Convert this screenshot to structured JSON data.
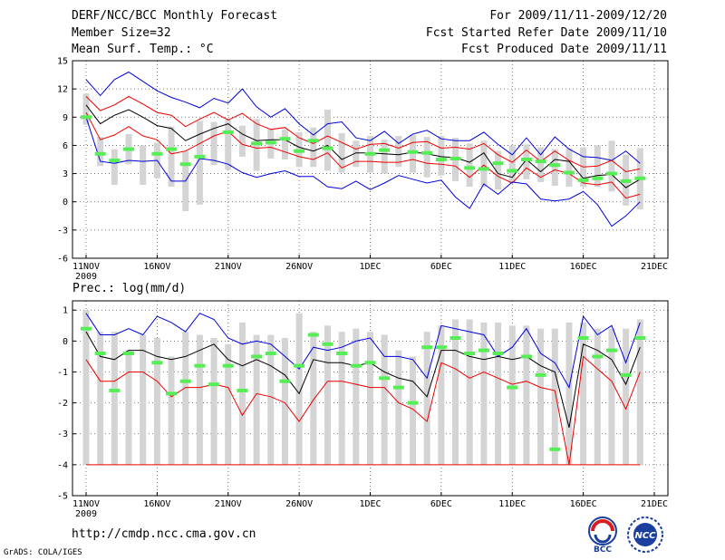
{
  "header": {
    "title": "DERF/NCC/BCC Monthly Forecast",
    "member_size": "Member Size=32",
    "variable": "Mean Surf. Temp.: °C",
    "period": "For 2009/11/11-2009/12/20",
    "start_date": "Fcst Started Refer Date 2009/11/10",
    "produced_date": "Fcst Produced Date 2009/11/11"
  },
  "footer": {
    "url": "http://cmdp.ncc.cma.gov.cn",
    "grads": "GrADS: COLA/IGES",
    "logo_bcc": "BCC",
    "logo_ncc": "NCC"
  },
  "colors": {
    "envelope_max_min": "#0000dd",
    "spread_band": "#ee0000",
    "ensemble_mean": "#000000",
    "bar": "#d4d4d4",
    "marker": "#55ee55",
    "grid": "#555555"
  },
  "chart_data": [
    {
      "id": "temperature",
      "type": "line",
      "title": "",
      "ylabel": "",
      "ylim": [
        -6,
        15
      ],
      "yticks": [
        15,
        12,
        9,
        6,
        3,
        0,
        -3,
        -6
      ],
      "xlim": [
        0,
        40
      ],
      "xticks": [
        {
          "day": 1,
          "label": "11NOV",
          "sub": "2009"
        },
        {
          "day": 6,
          "label": "16NOV"
        },
        {
          "day": 11,
          "label": "21NOV"
        },
        {
          "day": 16,
          "label": "26NOV"
        },
        {
          "day": 21,
          "label": "1DEC"
        },
        {
          "day": 26,
          "label": "6DEC"
        },
        {
          "day": 31,
          "label": "11DEC"
        },
        {
          "day": 36,
          "label": "16DEC"
        },
        {
          "day": 41,
          "label": "21DEC"
        }
      ],
      "days": [
        1,
        2,
        3,
        4,
        5,
        6,
        7,
        8,
        9,
        10,
        11,
        12,
        13,
        14,
        15,
        16,
        17,
        18,
        19,
        20,
        21,
        22,
        23,
        24,
        25,
        26,
        27,
        28,
        29,
        30,
        31,
        32,
        33,
        34,
        35,
        36,
        37,
        38,
        39,
        40
      ],
      "series": [
        {
          "name": "max",
          "color_key": "envelope_max_min",
          "values": [
            13,
            11.3,
            13,
            13.8,
            12.8,
            11.8,
            11.1,
            10.6,
            10,
            11,
            10.5,
            12,
            10.1,
            9,
            9.9,
            8.3,
            7.1,
            8.3,
            8.5,
            6.8,
            6.5,
            7.5,
            6.2,
            7.2,
            7.6,
            6.7,
            6.5,
            6.5,
            7.4,
            6.1,
            5,
            6.8,
            5,
            6.9,
            5.6,
            4.8,
            4.7,
            4.4,
            5.4,
            4.1
          ]
        },
        {
          "name": "upper",
          "color_key": "spread_band",
          "values": [
            11.2,
            9.7,
            10.3,
            11.2,
            10.4,
            9.5,
            9.2,
            8,
            8.8,
            9.5,
            8.7,
            9.4,
            8.3,
            7.7,
            7.9,
            6.8,
            6.2,
            7,
            6.3,
            5.6,
            6.1,
            6.2,
            5.7,
            6.3,
            6.4,
            5.7,
            5.8,
            5.6,
            6.2,
            5,
            4.2,
            5.5,
            4.3,
            5.4,
            4.4,
            3.7,
            3.8,
            4.4,
            3.2,
            3.5
          ]
        },
        {
          "name": "mean",
          "color_key": "ensemble_mean",
          "values": [
            10.3,
            8.3,
            9.2,
            9.8,
            9,
            8.1,
            7.8,
            6.5,
            7.2,
            7.8,
            8.3,
            7.2,
            6.5,
            6.6,
            6.6,
            5.8,
            5.4,
            6,
            4.5,
            5.2,
            5.2,
            5.1,
            5,
            5.3,
            5.1,
            4.8,
            4.7,
            4.2,
            5.2,
            3,
            2.6,
            4.5,
            3.2,
            4.5,
            4.3,
            2.5,
            2.8,
            2.9,
            1.5,
            2.4
          ]
        },
        {
          "name": "lower",
          "color_key": "spread_band",
          "values": [
            9.5,
            6.6,
            7.1,
            8,
            7,
            6.6,
            5.1,
            5.4,
            6.2,
            7,
            7.5,
            6.1,
            5.7,
            5.8,
            5.3,
            4.8,
            4.5,
            5.2,
            3.6,
            4.3,
            4.3,
            4.2,
            4.2,
            4.5,
            4.1,
            4,
            3.8,
            2.6,
            3.9,
            2.7,
            2,
            3.6,
            2.6,
            3.4,
            3,
            2,
            1.8,
            2.1,
            0.4,
            0.8
          ]
        },
        {
          "name": "min",
          "color_key": "envelope_max_min",
          "values": [
            9,
            4.3,
            4.1,
            4.4,
            4.3,
            4.4,
            2.2,
            2.2,
            4.6,
            4.4,
            4,
            3.1,
            2.6,
            3,
            3.3,
            2.7,
            2.7,
            1.6,
            1.4,
            2.2,
            1.3,
            2,
            2.8,
            2.4,
            2,
            2.3,
            0.5,
            -0.7,
            1.9,
            0.8,
            2.1,
            1.9,
            0.3,
            0.1,
            0.3,
            1.1,
            -0.3,
            -2.6,
            -1.5,
            0
          ]
        }
      ],
      "bar_ranges": [
        [
          8.2,
          11.5
        ],
        [
          3.8,
          6.9
        ],
        [
          1.8,
          5.6
        ],
        [
          4,
          7.2
        ],
        [
          1.8,
          6
        ],
        [
          2.5,
          6.3
        ],
        [
          1.6,
          8
        ],
        [
          -1,
          5.4
        ],
        [
          -0.3,
          8.6
        ],
        [
          3.9,
          8.5
        ],
        [
          3.4,
          8.7
        ],
        [
          4.8,
          8.1
        ],
        [
          3.3,
          8.8
        ],
        [
          4.6,
          7.7
        ],
        [
          4.5,
          7.7
        ],
        [
          3.7,
          7.4
        ],
        [
          3.7,
          7.9
        ],
        [
          3.3,
          9.8
        ],
        [
          3.1,
          7.3
        ],
        [
          3.7,
          6.5
        ],
        [
          3.1,
          7
        ],
        [
          3,
          6.6
        ],
        [
          3.7,
          7
        ],
        [
          3.1,
          7.1
        ],
        [
          2.6,
          6.9
        ],
        [
          2.8,
          7
        ],
        [
          2.2,
          6.8
        ],
        [
          1.6,
          6.2
        ],
        [
          1.6,
          6.5
        ],
        [
          1.3,
          5.4
        ],
        [
          2,
          6
        ],
        [
          2.4,
          6.1
        ],
        [
          2.1,
          5.8
        ],
        [
          1.7,
          5.6
        ],
        [
          1.6,
          5.7
        ],
        [
          1.6,
          5.8
        ],
        [
          1.6,
          6
        ],
        [
          1.1,
          6.5
        ],
        [
          -0.4,
          5
        ],
        [
          -0.8,
          5.7
        ]
      ],
      "markers": [
        9,
        5.1,
        4.4,
        5.6,
        null,
        5.1,
        5.6,
        4,
        4.8,
        null,
        7.4,
        null,
        6.2,
        6.3,
        6.7,
        5.4,
        6.5,
        5.7,
        null,
        null,
        5.1,
        5.5,
        null,
        5.3,
        5.2,
        4.5,
        4.6,
        3.6,
        3.5,
        4.1,
        3.3,
        4.5,
        4.3,
        3.9,
        3.1,
        2.3,
        2.5,
        3,
        2.2,
        2.5
      ]
    },
    {
      "id": "precipitation",
      "type": "line",
      "title": "Prec.: log(mm/d)",
      "ylim": [
        -5,
        1.3
      ],
      "yticks": [
        1,
        0,
        -1,
        -2,
        -3,
        -4,
        -5
      ],
      "xlim": [
        0,
        40
      ],
      "xticks": [
        {
          "day": 1,
          "label": "11NOV",
          "sub": "2009"
        },
        {
          "day": 6,
          "label": "16NOV"
        },
        {
          "day": 11,
          "label": "21NOV"
        },
        {
          "day": 16,
          "label": "26NOV"
        },
        {
          "day": 21,
          "label": "1DEC"
        },
        {
          "day": 26,
          "label": "6DEC"
        },
        {
          "day": 31,
          "label": "11DEC"
        },
        {
          "day": 36,
          "label": "16DEC"
        },
        {
          "day": 41,
          "label": "21DEC"
        }
      ],
      "days": [
        1,
        2,
        3,
        4,
        5,
        6,
        7,
        8,
        9,
        10,
        11,
        12,
        13,
        14,
        15,
        16,
        17,
        18,
        19,
        20,
        21,
        22,
        23,
        24,
        25,
        26,
        27,
        28,
        29,
        30,
        31,
        32,
        33,
        34,
        35,
        36,
        37,
        38,
        39,
        40
      ],
      "series": [
        {
          "name": "max",
          "color_key": "envelope_max_min",
          "values": [
            0.9,
            0.2,
            0.2,
            0.4,
            0.2,
            0.8,
            0.6,
            0.3,
            0.9,
            0.7,
            0.1,
            -0.1,
            0,
            -0.1,
            -0.5,
            -0.9,
            -0.2,
            -0.3,
            -0.2,
            0,
            0.1,
            -0.5,
            -0.5,
            -0.6,
            -1.2,
            0.5,
            0.4,
            0.3,
            0.2,
            -0.5,
            -0.2,
            0.4,
            -0.4,
            -0.7,
            -1.5,
            0.8,
            0.2,
            0.5,
            -0.7,
            0.6
          ]
        },
        {
          "name": "mean",
          "color_key": "ensemble_mean",
          "values": [
            0.3,
            -0.5,
            -0.6,
            -0.3,
            -0.3,
            -0.5,
            -0.6,
            -0.5,
            -0.3,
            -0.1,
            -0.6,
            -0.8,
            -0.6,
            -0.8,
            -1.1,
            -1.7,
            -0.6,
            -0.7,
            -0.7,
            -0.8,
            -0.7,
            -1,
            -1.2,
            -1.3,
            -1.8,
            -0.3,
            -0.3,
            -0.5,
            -0.6,
            -0.5,
            -0.6,
            -0.5,
            -0.8,
            -1,
            -2.8,
            -0.1,
            -0.3,
            -0.6,
            -1.4,
            -0.2
          ]
        },
        {
          "name": "min_band",
          "color_key": "spread_band",
          "values": [
            -0.6,
            -1.3,
            -1.3,
            -1,
            -1,
            -1.3,
            -1.8,
            -1.5,
            -1.5,
            -1.4,
            -1.5,
            -2.4,
            -1.7,
            -1.8,
            -2,
            -2.6,
            -1.9,
            -1.3,
            -1.3,
            -1.4,
            -1.5,
            -1.5,
            -2,
            -2.2,
            -2.6,
            -0.7,
            -0.9,
            -1.2,
            -1,
            -1.2,
            -1.4,
            -1.3,
            -1.5,
            -1.6,
            -4,
            -0.5,
            -0.9,
            -1.3,
            -2.2,
            -1
          ]
        }
      ],
      "floor": -4,
      "bar_ranges": [
        [
          -4,
          1
        ],
        [
          -4,
          0.3
        ],
        [
          -4,
          0.3
        ],
        [
          -4,
          -0.3
        ],
        [
          -4,
          0.2
        ],
        [
          -4,
          0.1
        ],
        [
          -4,
          -0.5
        ],
        [
          -4,
          0.3
        ],
        [
          -4,
          0.2
        ],
        [
          -4,
          0.1
        ],
        [
          -4,
          -0.1
        ],
        [
          -4,
          0.6
        ],
        [
          -4,
          0.2
        ],
        [
          -4,
          0.2
        ],
        [
          -4,
          0.1
        ],
        [
          -4,
          0.9
        ],
        [
          -4,
          0.3
        ],
        [
          -4,
          0.5
        ],
        [
          -4,
          0.3
        ],
        [
          -4,
          0.4
        ],
        [
          -4,
          0.3
        ],
        [
          -4,
          0.2
        ],
        [
          -4,
          -0.3
        ],
        [
          -4,
          -0.5
        ],
        [
          -4,
          0.3
        ],
        [
          -4,
          0.5
        ],
        [
          -4,
          0.7
        ],
        [
          -4,
          0.7
        ],
        [
          -4,
          0.6
        ],
        [
          -4,
          0.6
        ],
        [
          -4,
          0.5
        ],
        [
          -4,
          0.5
        ],
        [
          -4,
          0.4
        ],
        [
          -4,
          0.4
        ],
        [
          -4,
          0.6
        ],
        [
          -4,
          0.6
        ],
        [
          -4,
          0.4
        ],
        [
          -4,
          0.4
        ],
        [
          -4,
          0.4
        ],
        [
          -4,
          0.7
        ]
      ],
      "markers": [
        0.4,
        -0.4,
        -1.6,
        -0.4,
        null,
        -0.7,
        -1.7,
        -1.3,
        -0.8,
        -1.4,
        -0.8,
        -1.6,
        -0.5,
        -0.4,
        -1.3,
        -0.8,
        0.2,
        -0.1,
        -0.4,
        -0.8,
        -0.7,
        -1.2,
        -1.5,
        -2,
        -0.2,
        -0.2,
        0.1,
        -0.4,
        -0.3,
        -0.4,
        -1.5,
        -0.5,
        -1.1,
        -3.5,
        null,
        0.1,
        -0.5,
        -0.3,
        -1.1,
        0.1
      ]
    }
  ]
}
